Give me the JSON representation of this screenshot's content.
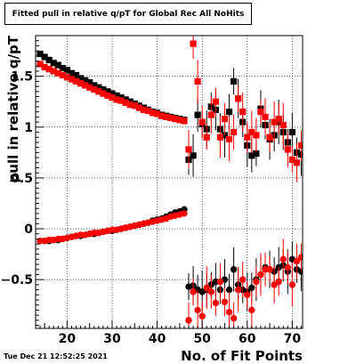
{
  "timestamp": "Tue Dec 21 12:52:25 2021",
  "chart_data": {
    "type": "scatter",
    "title": "Fitted pull in relative q/pT for Global Rec All NoHits",
    "xlabel": "No. of Fit Points",
    "ylabel": "pull in relative q/pT",
    "xlim": [
      13,
      72.3
    ],
    "ylim": [
      -0.98,
      1.9
    ],
    "xticks": [
      20,
      30,
      40,
      50,
      60,
      70
    ],
    "yticks": [
      -0.5,
      0,
      0.5,
      1,
      1.5
    ],
    "xtick_labels": [
      "20",
      "30",
      "40",
      "50",
      "60",
      "70"
    ],
    "ytick_labels": [
      "−0.5",
      "0",
      "0.5",
      "1",
      "1.5"
    ],
    "grid": true,
    "series": [
      {
        "marker": "square",
        "color": "#000000",
        "x": [
          14,
          15,
          16,
          17,
          18,
          19,
          20,
          21,
          22,
          23,
          24,
          25,
          26,
          27,
          28,
          29,
          30,
          31,
          32,
          33,
          34,
          35,
          36,
          37,
          38,
          39,
          40,
          41,
          42,
          43,
          44,
          45,
          46,
          47,
          48,
          49,
          50,
          51,
          52,
          53,
          54,
          55,
          56,
          57,
          58,
          59,
          60,
          61,
          62,
          63,
          64,
          65,
          66,
          67,
          68,
          69,
          70,
          71,
          72
        ],
        "y": [
          1.72,
          1.69,
          1.66,
          1.63,
          1.61,
          1.58,
          1.56,
          1.53,
          1.51,
          1.48,
          1.46,
          1.44,
          1.41,
          1.39,
          1.37,
          1.35,
          1.33,
          1.31,
          1.29,
          1.27,
          1.25,
          1.23,
          1.21,
          1.19,
          1.17,
          1.15,
          1.14,
          1.12,
          1.11,
          1.1,
          1.09,
          1.08,
          1.07,
          0.68,
          0.72,
          1.12,
          1.03,
          0.98,
          1.2,
          1.17,
          0.98,
          0.92,
          1.15,
          1.45,
          1.28,
          1.05,
          0.82,
          0.72,
          0.74,
          1.18,
          1.02,
          0.88,
          0.92,
          1.05,
          0.95,
          0.85,
          0.95,
          0.75,
          0.73
        ]
      },
      {
        "marker": "square",
        "color": "#ff0000",
        "x": [
          14,
          15,
          16,
          17,
          18,
          19,
          20,
          21,
          22,
          23,
          24,
          25,
          26,
          27,
          28,
          29,
          30,
          31,
          32,
          33,
          34,
          35,
          36,
          37,
          38,
          39,
          40,
          41,
          42,
          43,
          44,
          45,
          46,
          47,
          48,
          49,
          50,
          51,
          52,
          53,
          54,
          55,
          56,
          57,
          58,
          59,
          60,
          61,
          62,
          63,
          64,
          65,
          66,
          67,
          68,
          69,
          70,
          71,
          72
        ],
        "y": [
          1.62,
          1.59,
          1.57,
          1.55,
          1.53,
          1.51,
          1.49,
          1.47,
          1.45,
          1.43,
          1.41,
          1.39,
          1.37,
          1.35,
          1.33,
          1.31,
          1.29,
          1.27,
          1.26,
          1.24,
          1.22,
          1.21,
          1.19,
          1.17,
          1.16,
          1.14,
          1.13,
          1.11,
          1.1,
          1.09,
          1.08,
          1.07,
          1.06,
          0.78,
          1.82,
          1.45,
          1.05,
          0.9,
          1.12,
          1.25,
          0.9,
          1.08,
          0.88,
          0.95,
          1.28,
          1.15,
          0.9,
          0.95,
          0.92,
          1.15,
          1.1,
          0.9,
          1.05,
          1.08,
          1.02,
          0.78,
          0.68,
          0.65,
          0.82
        ]
      },
      {
        "marker": "circle",
        "color": "#000000",
        "x": [
          14,
          15,
          16,
          17,
          18,
          19,
          20,
          21,
          22,
          23,
          24,
          25,
          26,
          27,
          28,
          29,
          30,
          31,
          32,
          33,
          34,
          35,
          36,
          37,
          38,
          39,
          40,
          41,
          42,
          43,
          44,
          45,
          46,
          47,
          48,
          49,
          50,
          51,
          52,
          53,
          54,
          55,
          56,
          57,
          58,
          59,
          60,
          61,
          62,
          63,
          64,
          65,
          66,
          67,
          68,
          69,
          70,
          71,
          72
        ],
        "y": [
          -0.12,
          -0.12,
          -0.12,
          -0.11,
          -0.11,
          -0.1,
          -0.09,
          -0.08,
          -0.07,
          -0.07,
          -0.06,
          -0.05,
          -0.05,
          -0.04,
          -0.03,
          -0.02,
          -0.02,
          -0.01,
          0.0,
          0.01,
          0.02,
          0.03,
          0.04,
          0.05,
          0.06,
          0.08,
          0.09,
          0.1,
          0.12,
          0.14,
          0.16,
          0.17,
          0.19,
          -0.57,
          -0.56,
          -0.6,
          -0.62,
          -0.6,
          -0.55,
          -0.52,
          -0.6,
          -0.5,
          -0.6,
          -0.4,
          -0.55,
          -0.6,
          -0.62,
          -0.58,
          -0.5,
          -0.45,
          -0.38,
          -0.4,
          -0.42,
          -0.38,
          -0.36,
          -0.42,
          -0.3,
          -0.4,
          -0.42
        ]
      },
      {
        "marker": "circle",
        "color": "#ff0000",
        "x": [
          14,
          15,
          16,
          17,
          18,
          19,
          20,
          21,
          22,
          23,
          24,
          25,
          26,
          27,
          28,
          29,
          30,
          31,
          32,
          33,
          34,
          35,
          36,
          37,
          38,
          39,
          40,
          41,
          42,
          43,
          44,
          45,
          46,
          47,
          48,
          49,
          50,
          51,
          52,
          53,
          54,
          55,
          56,
          57,
          58,
          59,
          60,
          61,
          62,
          63,
          64,
          65,
          66,
          67,
          68,
          69,
          70,
          71,
          72
        ],
        "y": [
          -0.12,
          -0.12,
          -0.11,
          -0.11,
          -0.1,
          -0.1,
          -0.09,
          -0.08,
          -0.07,
          -0.06,
          -0.06,
          -0.05,
          -0.04,
          -0.04,
          -0.03,
          -0.02,
          -0.01,
          -0.01,
          0.0,
          0.01,
          0.02,
          0.03,
          0.04,
          0.05,
          0.06,
          0.07,
          0.08,
          0.09,
          0.1,
          0.12,
          0.13,
          0.14,
          0.15,
          -0.9,
          -0.62,
          -0.8,
          -0.86,
          -0.58,
          -0.62,
          -0.73,
          -0.52,
          -0.72,
          -0.82,
          -0.88,
          -0.6,
          -0.5,
          -0.65,
          -0.8,
          -0.52,
          -0.45,
          -0.4,
          -0.4,
          -0.55,
          -0.52,
          -0.3,
          -0.38,
          -0.55,
          -0.32,
          -0.28
        ]
      }
    ]
  }
}
